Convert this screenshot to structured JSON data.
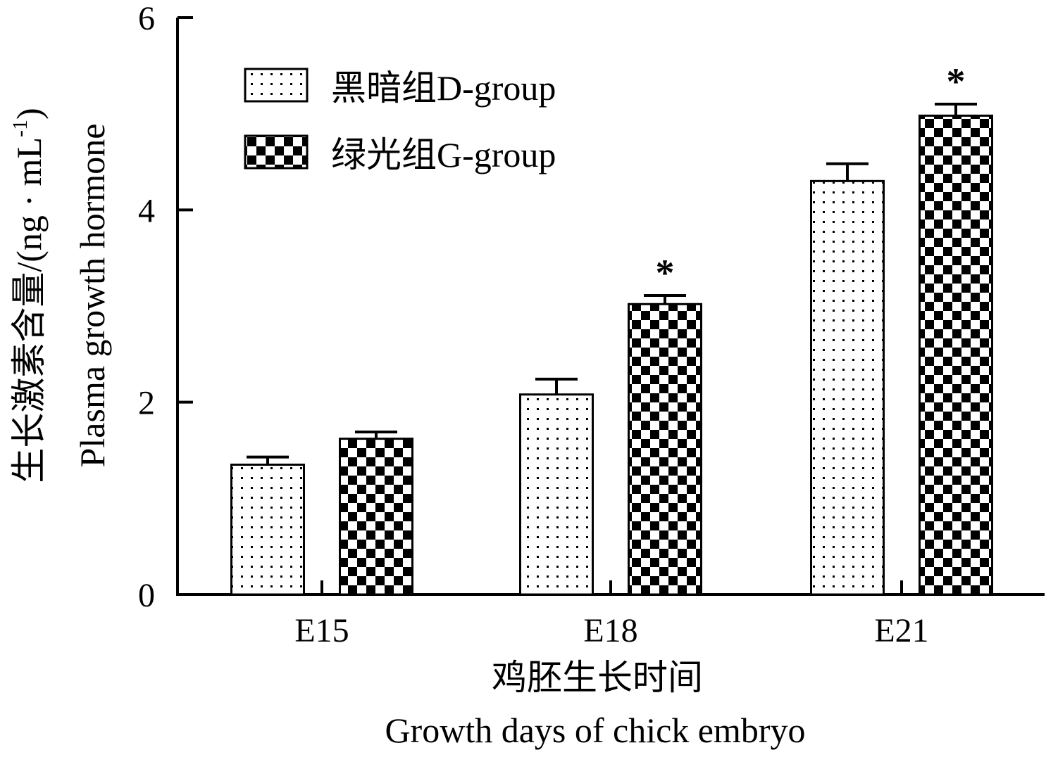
{
  "chart_data": {
    "type": "bar",
    "title": "",
    "categories": [
      "E15",
      "E18",
      "E21"
    ],
    "series": [
      {
        "name": "黑暗组D-group",
        "values": [
          1.35,
          2.08,
          4.3
        ],
        "errors": [
          0.08,
          0.16,
          0.18
        ],
        "significance": [
          "",
          "",
          ""
        ],
        "pattern": "dots"
      },
      {
        "name": "绿光组G-group",
        "values": [
          1.62,
          3.02,
          4.98
        ],
        "errors": [
          0.07,
          0.09,
          0.12
        ],
        "significance": [
          "",
          "*",
          "*"
        ],
        "pattern": "checker"
      }
    ],
    "ylim": [
      0,
      6
    ],
    "yticks": [
      "0",
      "2",
      "4",
      "6"
    ],
    "ytick_values": [
      0,
      2,
      4,
      6
    ],
    "xlabel_cn": "鸡胚生长时间",
    "xlabel_en": "Growth days of chick embryo",
    "ylabel_cn": "生长激素含量/(ng · mL",
    "ylabel_sup": "-1",
    "ylabel_close": ")",
    "ylabel_en": "Plasma growth hormone",
    "legend_position": "top-left",
    "grid": false,
    "colors": {
      "axis": "#000000",
      "bar_fill": "#ffffff",
      "pattern": "#000000"
    }
  }
}
